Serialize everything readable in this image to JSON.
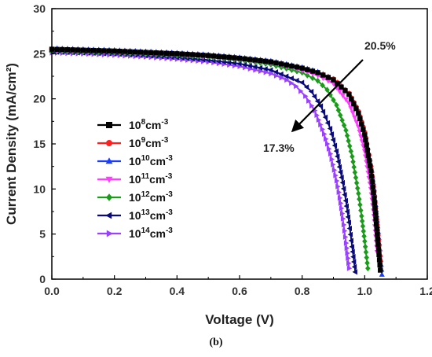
{
  "caption": "(b)",
  "chart_data": {
    "type": "line",
    "xlabel": "Voltage (V)",
    "ylabel": "Current Density (mA/cm²)",
    "xlim": [
      0.0,
      1.2
    ],
    "ylim": [
      0,
      30
    ],
    "xticks": [
      "0.0",
      "0.2",
      "0.4",
      "0.6",
      "0.8",
      "1.0",
      "1.2"
    ],
    "yticks": [
      "0",
      "5",
      "10",
      "15",
      "20",
      "25",
      "30"
    ],
    "grid": false,
    "legend_position": "center-left",
    "annotations": [
      {
        "text": "20.5%",
        "x": 1.02,
        "y": 25.5
      },
      {
        "text": "17.3%",
        "x": 0.78,
        "y": 14.0
      }
    ],
    "series": [
      {
        "name": "10^8cm^-3",
        "base": "10",
        "exp": "8",
        "unit": "cm",
        "unit_exp": "-3",
        "color": "#000000",
        "marker": "square",
        "jsc": 25.5,
        "voc": 1.052,
        "x": [
          0.0,
          0.1,
          0.2,
          0.3,
          0.4,
          0.5,
          0.6,
          0.7,
          0.8,
          0.85,
          0.9,
          0.95,
          0.98,
          1.0,
          1.02,
          1.03,
          1.04,
          1.05
        ],
        "y": [
          25.5,
          25.4,
          25.3,
          25.15,
          25.0,
          24.8,
          24.5,
          24.1,
          23.4,
          22.9,
          22.1,
          20.5,
          18.4,
          16.0,
          12.0,
          9.0,
          5.0,
          1.0
        ]
      },
      {
        "name": "10^9cm^-3",
        "base": "10",
        "exp": "9",
        "unit": "cm",
        "unit_exp": "-3",
        "color": "#ff2020",
        "marker": "circle",
        "jsc": 25.5,
        "voc": 1.055,
        "x": [
          0.0,
          0.1,
          0.2,
          0.3,
          0.4,
          0.5,
          0.6,
          0.7,
          0.8,
          0.85,
          0.9,
          0.95,
          0.98,
          1.0,
          1.02,
          1.03,
          1.04,
          1.05
        ],
        "y": [
          25.5,
          25.4,
          25.3,
          25.15,
          25.0,
          24.8,
          24.5,
          24.1,
          23.4,
          22.9,
          22.2,
          20.6,
          18.6,
          16.3,
          12.5,
          9.7,
          6.0,
          2.0
        ]
      },
      {
        "name": "10^10cm^-3",
        "base": "10",
        "exp": "10",
        "unit": "cm",
        "unit_exp": "-3",
        "color": "#1a3cff",
        "marker": "triangle-up",
        "jsc": 25.6,
        "voc": 1.057,
        "x": [
          0.0,
          0.1,
          0.2,
          0.3,
          0.4,
          0.5,
          0.6,
          0.7,
          0.8,
          0.85,
          0.9,
          0.95,
          0.98,
          1.0,
          1.02,
          1.03,
          1.04,
          1.05,
          1.055
        ],
        "y": [
          25.6,
          25.5,
          25.4,
          25.25,
          25.1,
          24.9,
          24.6,
          24.2,
          23.5,
          23.0,
          22.2,
          20.6,
          18.6,
          16.4,
          12.7,
          10.0,
          6.5,
          2.7,
          0.5
        ]
      },
      {
        "name": "10^11cm^-3",
        "base": "10",
        "exp": "11",
        "unit": "cm",
        "unit_exp": "-3",
        "color": "#ff3cff",
        "marker": "triangle-down",
        "jsc": 25.4,
        "voc": 1.045,
        "x": [
          0.0,
          0.1,
          0.2,
          0.3,
          0.4,
          0.5,
          0.6,
          0.7,
          0.8,
          0.85,
          0.9,
          0.95,
          0.98,
          1.0,
          1.02,
          1.03,
          1.04
        ],
        "y": [
          25.4,
          25.3,
          25.2,
          25.05,
          24.9,
          24.7,
          24.4,
          24.0,
          23.2,
          22.6,
          21.7,
          19.5,
          16.9,
          14.2,
          10.0,
          7.0,
          3.0
        ]
      },
      {
        "name": "10^12cm^-3",
        "base": "10",
        "exp": "12",
        "unit": "cm",
        "unit_exp": "-3",
        "color": "#1a9c1a",
        "marker": "diamond",
        "jsc": 25.3,
        "voc": 1.012,
        "x": [
          0.0,
          0.1,
          0.2,
          0.3,
          0.4,
          0.5,
          0.6,
          0.7,
          0.8,
          0.85,
          0.88,
          0.91,
          0.94,
          0.96,
          0.98,
          0.99,
          1.0,
          1.01
        ],
        "y": [
          25.3,
          25.2,
          25.1,
          24.95,
          24.8,
          24.6,
          24.3,
          23.8,
          22.9,
          22.0,
          21.0,
          19.3,
          16.5,
          13.6,
          9.5,
          7.0,
          4.2,
          1.2
        ]
      },
      {
        "name": "10^13cm^-3",
        "base": "10",
        "exp": "13",
        "unit": "cm",
        "unit_exp": "-3",
        "color": "#0a0a7a",
        "marker": "triangle-left",
        "jsc": 25.2,
        "voc": 0.975,
        "x": [
          0.0,
          0.1,
          0.2,
          0.3,
          0.4,
          0.5,
          0.6,
          0.7,
          0.8,
          0.83,
          0.86,
          0.89,
          0.91,
          0.93,
          0.94,
          0.95,
          0.96,
          0.97
        ],
        "y": [
          25.2,
          25.1,
          25.0,
          24.8,
          24.6,
          24.3,
          23.9,
          23.2,
          21.8,
          20.8,
          19.2,
          16.7,
          14.2,
          10.7,
          8.7,
          6.3,
          3.6,
          0.8
        ]
      },
      {
        "name": "10^14cm^-3",
        "base": "10",
        "exp": "14",
        "unit": "cm",
        "unit_exp": "-3",
        "color": "#9a40ff",
        "marker": "triangle-right",
        "jsc": 25.1,
        "voc": 0.955,
        "x": [
          0.0,
          0.1,
          0.2,
          0.3,
          0.4,
          0.5,
          0.6,
          0.7,
          0.75,
          0.78,
          0.81,
          0.84,
          0.87,
          0.89,
          0.91,
          0.92,
          0.93,
          0.94,
          0.95
        ],
        "y": [
          25.1,
          25.0,
          24.85,
          24.65,
          24.4,
          24.1,
          23.6,
          22.8,
          22.1,
          21.4,
          20.3,
          18.7,
          16.1,
          13.9,
          10.9,
          9.0,
          6.7,
          4.0,
          1.2
        ]
      }
    ]
  }
}
